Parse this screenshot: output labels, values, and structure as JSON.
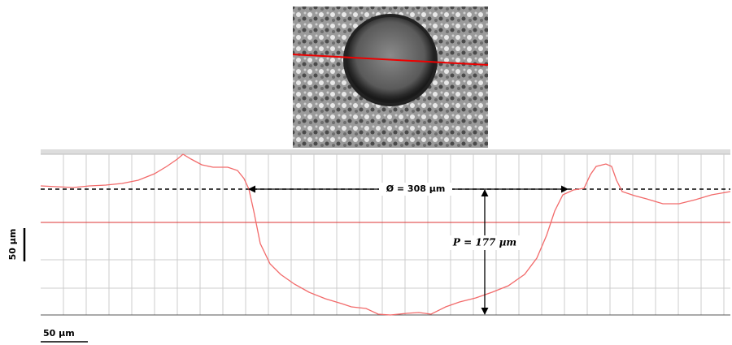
{
  "labels": {
    "diameter": "Ø = 308 µm",
    "depth": "P = 177 µm",
    "vertical_scale": "50 µm",
    "horizontal_scale": "50 µm"
  }
}
